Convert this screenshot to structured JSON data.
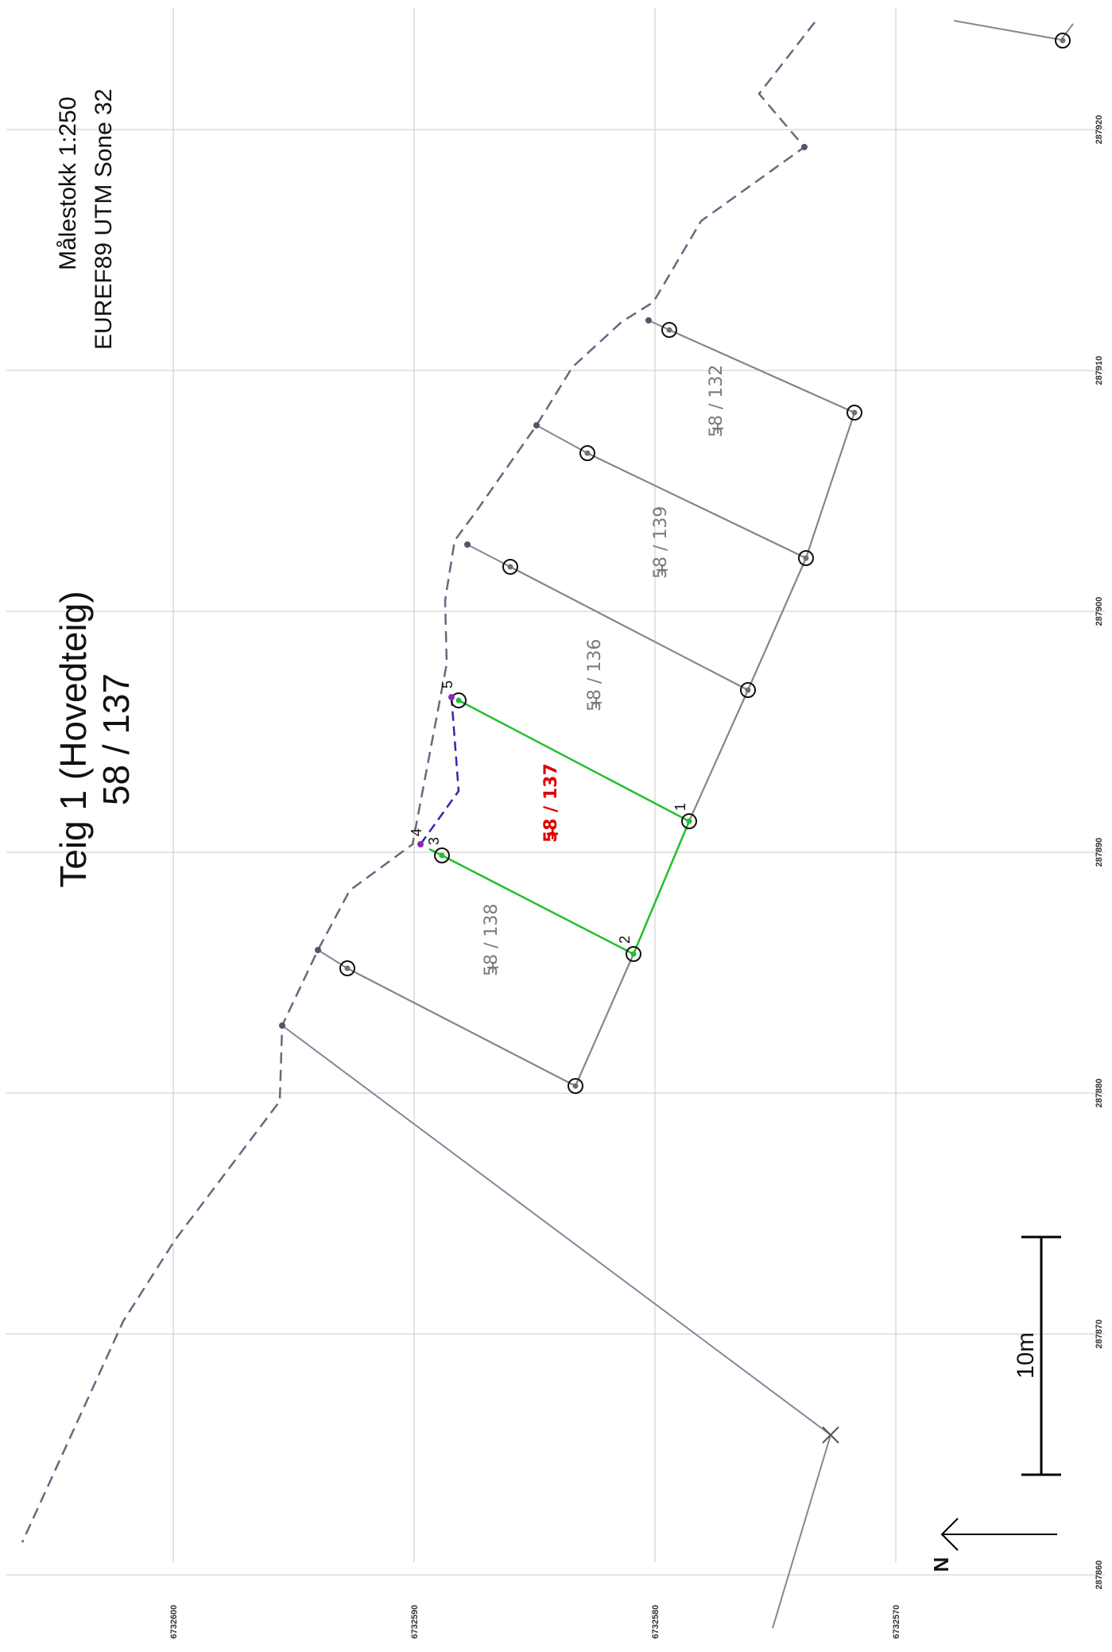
{
  "title": {
    "line1": "Teig 1 (Hovedteig)",
    "line2": "58 / 137"
  },
  "scale_info": {
    "scale": "Målestokk 1:250",
    "crs": "EUREF89 UTM Sone 32"
  },
  "scale_bar": {
    "label": "10m"
  },
  "north_arrow": {
    "label": "N"
  },
  "easting_labels": [
    "287920",
    "287910",
    "287900",
    "287890",
    "287880",
    "287870",
    "287860"
  ],
  "northing_labels": [
    "6732600",
    "6732590",
    "6732580",
    "6732570"
  ],
  "parcel_labels": {
    "p132": "58 / 132",
    "p139": "58 / 139",
    "p136": "58 / 136",
    "p137": "58 / 137",
    "p138": "58 / 138"
  },
  "point_numbers": [
    "1",
    "2",
    "3",
    "4",
    "5"
  ],
  "colors": {
    "main_parcel": "#22c02a",
    "main_label": "#e00000",
    "neighbour_line": "#7d8a86",
    "dashed_boundary": "#6b6680",
    "blue_dashed": "#2a2ab0",
    "purple_point": "#8a2ab0",
    "grid": "#c8c8c8"
  }
}
